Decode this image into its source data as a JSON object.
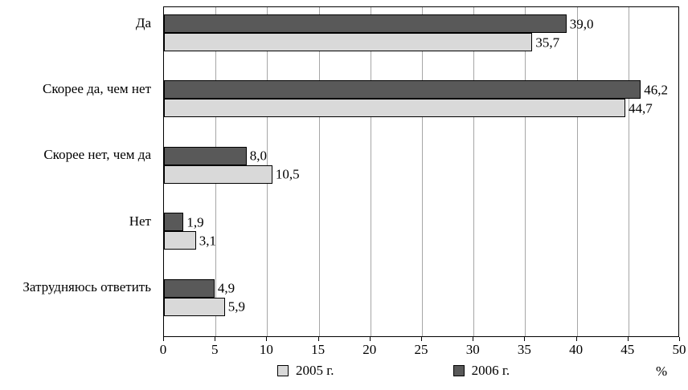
{
  "chart_data": {
    "type": "bar",
    "orientation": "horizontal",
    "title": "",
    "xlabel": "%",
    "ylabel": "",
    "xlim": [
      0,
      50
    ],
    "xticks": [
      0,
      5,
      10,
      15,
      20,
      25,
      30,
      35,
      40,
      45,
      50
    ],
    "grid": "vertical",
    "legend_position": "bottom",
    "categories": [
      "Да",
      "Скорее да, чем нет",
      "Скорее нет, чем да",
      "Нет",
      "Затрудняюсь ответить"
    ],
    "series": [
      {
        "name": "2005 г.",
        "color": "#d9d9d9",
        "values": [
          35.7,
          44.7,
          10.5,
          3.1,
          5.9
        ],
        "value_labels": [
          "35,7",
          "44,7",
          "10,5",
          "3,1",
          "5,9"
        ]
      },
      {
        "name": "2006 г.",
        "color": "#595959",
        "values": [
          39.0,
          46.2,
          8.0,
          1.9,
          4.9
        ],
        "value_labels": [
          "39,0",
          "46,2",
          "8,0",
          "1,9",
          "4,9"
        ]
      }
    ],
    "bar_order_top_to_bottom": [
      "2006 г.",
      "2005 г."
    ]
  }
}
